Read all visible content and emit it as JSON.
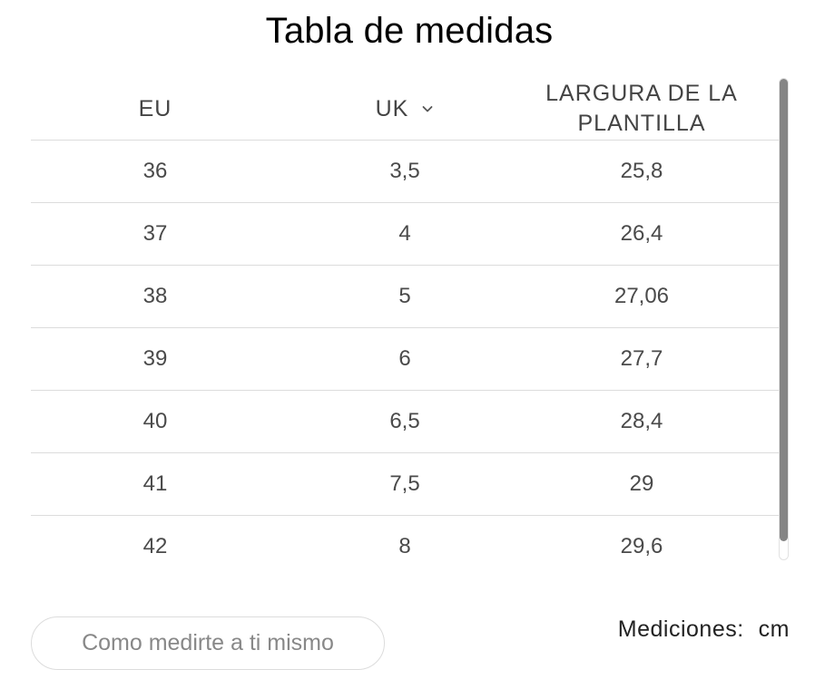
{
  "title": "Tabla de medidas",
  "table": {
    "headers": {
      "eu": "EU",
      "uk": "UK",
      "length_line1": "LARGURA DE LA",
      "length_line2": "PLANTILLA"
    },
    "rows": [
      {
        "eu": "36",
        "uk": "3,5",
        "length": "25,8"
      },
      {
        "eu": "37",
        "uk": "4",
        "length": "26,4"
      },
      {
        "eu": "38",
        "uk": "5",
        "length": "27,06"
      },
      {
        "eu": "39",
        "uk": "6",
        "length": "27,7"
      },
      {
        "eu": "40",
        "uk": "6,5",
        "length": "28,4"
      },
      {
        "eu": "41",
        "uk": "7,5",
        "length": "29"
      },
      {
        "eu": "42",
        "uk": "8",
        "length": "29,6"
      }
    ]
  },
  "how_to_measure_button": "Como medirte a ti mismo",
  "units": {
    "label": "Mediciones:",
    "value": "cm"
  },
  "icons": {
    "uk_dropdown": "chevron-down-icon"
  }
}
